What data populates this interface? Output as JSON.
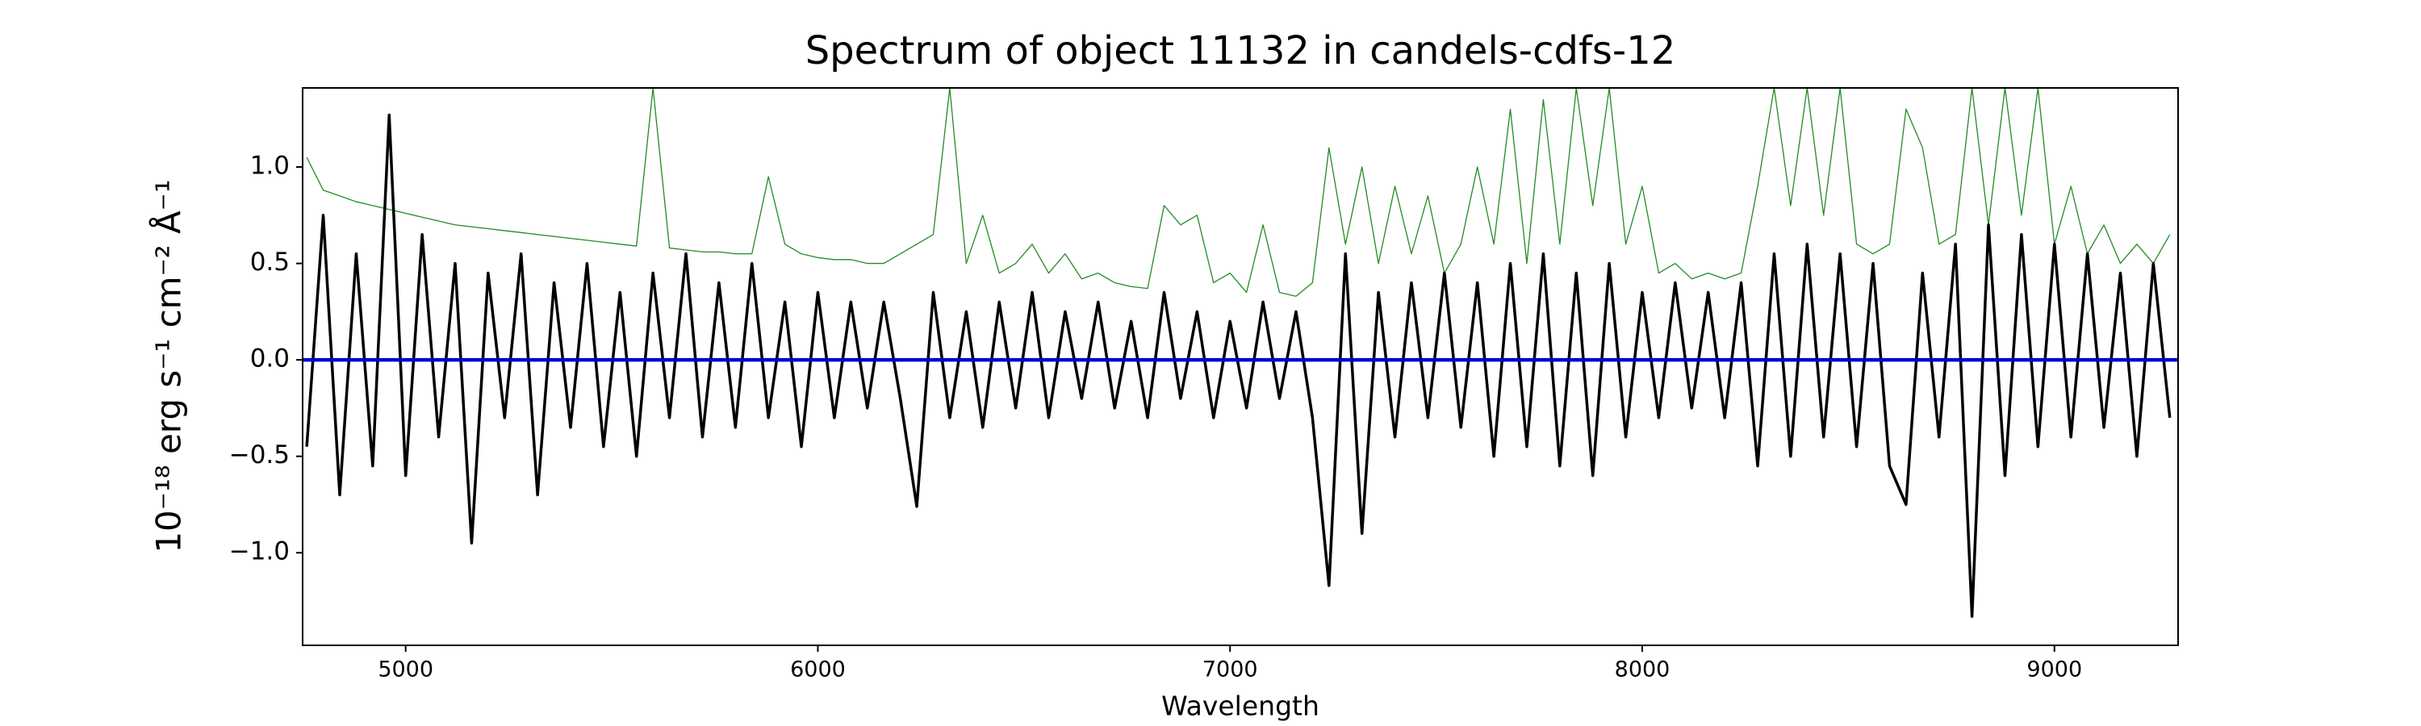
{
  "chart_data": {
    "type": "line",
    "title": "Spectrum of object 11132 in candels-cdfs-12",
    "x_label": "Wavelength",
    "y_label": "10⁻¹⁸ erg s⁻¹ cm⁻² Å⁻¹",
    "xlim": [
      4750,
      9300
    ],
    "ylim": [
      -1.48,
      1.41
    ],
    "xticks": [
      5000,
      6000,
      7000,
      8000,
      9000
    ],
    "yticks": [
      {
        "value": -1.0,
        "label": "−1.0"
      },
      {
        "value": -0.5,
        "label": "−0.5"
      },
      {
        "value": 0.0,
        "label": "0.0"
      },
      {
        "value": 0.5,
        "label": "0.5"
      },
      {
        "value": 1.0,
        "label": "1.0"
      }
    ],
    "grid": false,
    "x": [
      4760,
      4800,
      4840,
      4880,
      4920,
      4960,
      5000,
      5040,
      5080,
      5120,
      5160,
      5200,
      5240,
      5280,
      5320,
      5360,
      5400,
      5440,
      5480,
      5520,
      5560,
      5600,
      5640,
      5680,
      5720,
      5760,
      5800,
      5840,
      5880,
      5920,
      5960,
      6000,
      6040,
      6080,
      6120,
      6160,
      6200,
      6240,
      6280,
      6320,
      6360,
      6400,
      6440,
      6480,
      6520,
      6560,
      6600,
      6640,
      6680,
      6720,
      6760,
      6800,
      6840,
      6880,
      6920,
      6960,
      7000,
      7040,
      7080,
      7120,
      7160,
      7200,
      7240,
      7280,
      7320,
      7360,
      7400,
      7440,
      7480,
      7520,
      7560,
      7600,
      7640,
      7680,
      7720,
      7760,
      7800,
      7840,
      7880,
      7920,
      7960,
      8000,
      8040,
      8080,
      8120,
      8160,
      8200,
      8240,
      8280,
      8320,
      8360,
      8400,
      8440,
      8480,
      8520,
      8560,
      8600,
      8640,
      8680,
      8720,
      8760,
      8800,
      8840,
      8880,
      8920,
      8960,
      9000,
      9040,
      9080,
      9120,
      9160,
      9200,
      9240,
      9280
    ],
    "series": [
      {
        "color": "#228b22",
        "width": 1.3,
        "values": [
          1.05,
          0.88,
          0.85,
          0.82,
          0.8,
          0.78,
          0.76,
          0.74,
          0.72,
          0.7,
          0.69,
          0.68,
          0.67,
          0.66,
          0.65,
          0.64,
          0.63,
          0.62,
          0.61,
          0.6,
          0.59,
          1.41,
          0.58,
          0.57,
          0.56,
          0.56,
          0.55,
          0.55,
          0.95,
          0.6,
          0.55,
          0.53,
          0.52,
          0.52,
          0.5,
          0.5,
          0.55,
          0.6,
          0.65,
          1.41,
          0.5,
          0.75,
          0.45,
          0.5,
          0.6,
          0.45,
          0.55,
          0.42,
          0.45,
          0.4,
          0.38,
          0.37,
          0.8,
          0.7,
          0.75,
          0.4,
          0.45,
          0.35,
          0.7,
          0.35,
          0.33,
          0.4,
          1.1,
          0.6,
          1.0,
          0.5,
          0.9,
          0.55,
          0.85,
          0.45,
          0.6,
          1.0,
          0.6,
          1.3,
          0.5,
          1.35,
          0.6,
          1.41,
          0.8,
          1.41,
          0.6,
          0.9,
          0.45,
          0.5,
          0.42,
          0.45,
          0.42,
          0.45,
          0.9,
          1.41,
          0.8,
          1.41,
          0.75,
          1.41,
          0.6,
          0.55,
          0.6,
          1.3,
          1.1,
          0.6,
          0.65,
          1.41,
          0.7,
          1.41,
          0.75,
          1.41,
          0.6,
          0.9,
          0.55,
          0.7,
          0.5,
          0.6,
          0.5,
          0.65
        ]
      },
      {
        "color": "#000000",
        "width": 3.5,
        "values": [
          -0.45,
          0.75,
          -0.7,
          0.55,
          -0.55,
          1.27,
          -0.6,
          0.65,
          -0.4,
          0.5,
          -0.95,
          0.45,
          -0.3,
          0.55,
          -0.7,
          0.4,
          -0.35,
          0.5,
          -0.45,
          0.35,
          -0.5,
          0.45,
          -0.3,
          0.55,
          -0.4,
          0.4,
          -0.35,
          0.5,
          -0.3,
          0.3,
          -0.45,
          0.35,
          -0.3,
          0.3,
          -0.25,
          0.3,
          -0.2,
          -0.76,
          0.35,
          -0.3,
          0.25,
          -0.35,
          0.3,
          -0.25,
          0.35,
          -0.3,
          0.25,
          -0.2,
          0.3,
          -0.25,
          0.2,
          -0.3,
          0.35,
          -0.2,
          0.25,
          -0.3,
          0.2,
          -0.25,
          0.3,
          -0.2,
          0.25,
          -0.3,
          -1.17,
          0.55,
          -0.9,
          0.35,
          -0.4,
          0.4,
          -0.3,
          0.45,
          -0.35,
          0.4,
          -0.5,
          0.5,
          -0.45,
          0.55,
          -0.55,
          0.45,
          -0.6,
          0.5,
          -0.4,
          0.35,
          -0.3,
          0.4,
          -0.25,
          0.35,
          -0.3,
          0.4,
          -0.55,
          0.55,
          -0.5,
          0.6,
          -0.4,
          0.55,
          -0.45,
          0.5,
          -0.55,
          -0.75,
          0.45,
          -0.4,
          0.6,
          -1.33,
          0.7,
          -0.6,
          0.65,
          -0.45,
          0.6,
          -0.4,
          0.55,
          -0.35,
          0.45,
          -0.5,
          0.5,
          -0.3
        ]
      },
      {
        "color": "#0000cc",
        "width": 4.5,
        "x": [
          4750,
          9300
        ],
        "values": [
          0,
          0
        ]
      }
    ]
  }
}
